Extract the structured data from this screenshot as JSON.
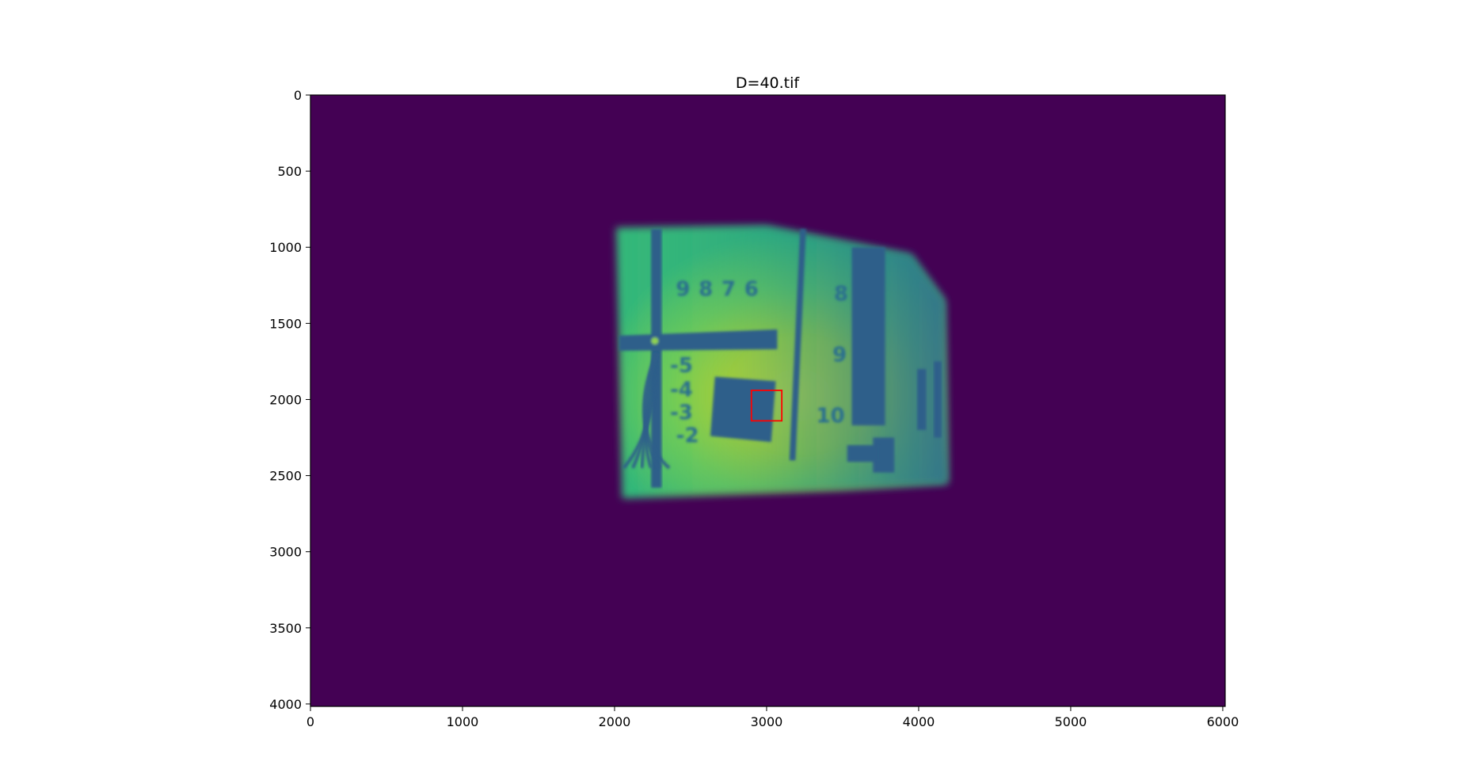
{
  "chart_data": {
    "type": "heatmap",
    "title": "D=40.tif",
    "xlabel": "",
    "ylabel": "",
    "xlim": [
      0,
      6016
    ],
    "ylim": [
      4016,
      0
    ],
    "x_ticks": [
      0,
      1000,
      2000,
      3000,
      4000,
      5000,
      6000
    ],
    "y_ticks": [
      0,
      500,
      1000,
      1500,
      2000,
      2500,
      3000,
      3500,
      4000
    ],
    "colormap": "viridis",
    "colorbar": false,
    "grid": false,
    "background_value_color": "#440154",
    "illuminated_region": {
      "outline": [
        [
          2010,
          870
        ],
        [
          3000,
          860
        ],
        [
          3950,
          1050
        ],
        [
          4170,
          1350
        ],
        [
          4190,
          2550
        ],
        [
          3500,
          2590
        ],
        [
          2050,
          2650
        ]
      ]
    },
    "highlight_box": {
      "x": 2900,
      "y": 1940,
      "width": 200,
      "height": 200,
      "color": "#ff0000"
    },
    "target_labels": [
      {
        "text": "9",
        "x": 2450,
        "y": 1320
      },
      {
        "text": "8",
        "x": 2600,
        "y": 1320
      },
      {
        "text": "7",
        "x": 2750,
        "y": 1320
      },
      {
        "text": "6",
        "x": 2900,
        "y": 1320
      },
      {
        "text": "-5",
        "x": 2440,
        "y": 1820
      },
      {
        "text": "-4",
        "x": 2440,
        "y": 1980
      },
      {
        "text": "-3",
        "x": 2440,
        "y": 2130
      },
      {
        "text": "-2",
        "x": 2480,
        "y": 2280
      },
      {
        "text": "8",
        "x": 3490,
        "y": 1350
      },
      {
        "text": "9",
        "x": 3480,
        "y": 1750
      },
      {
        "text": "10",
        "x": 3420,
        "y": 2150
      }
    ]
  }
}
